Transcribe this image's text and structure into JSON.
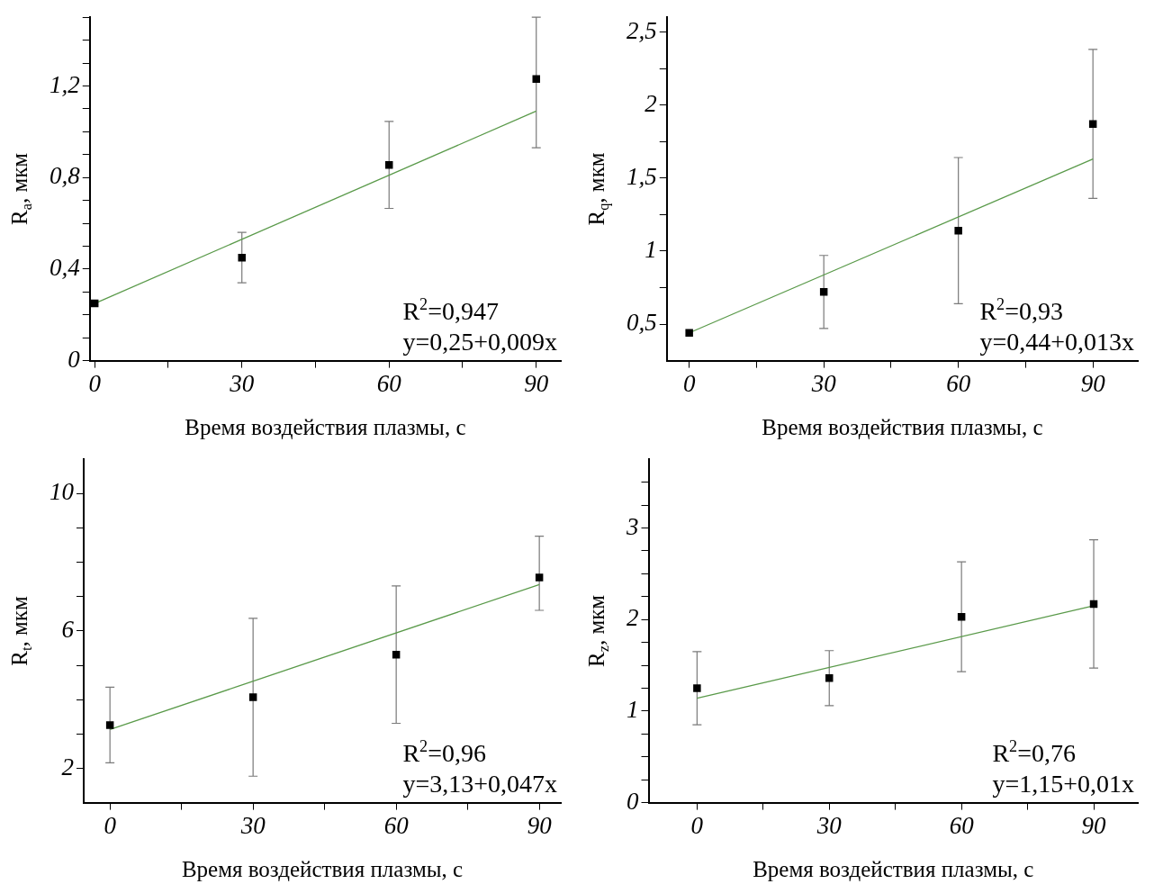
{
  "chart_data": [
    {
      "type": "scatter",
      "xlabel": "Время воздействия плазмы, с",
      "ylabel": "R$_{a}$, мкм",
      "grid": false,
      "legend": false,
      "xlim": [
        -1,
        95
      ],
      "xticks": [
        0,
        {
          "value": 15,
          "label": null
        },
        30,
        {
          "value": 45,
          "label": null
        },
        60,
        {
          "value": 75,
          "label": null
        },
        90
      ],
      "ylim": [
        0,
        1.5
      ],
      "yticks": [
        {
          "value": 0,
          "label": "0"
        },
        {
          "value": 0.1,
          "label": null
        },
        {
          "value": 0.2,
          "label": null
        },
        {
          "value": 0.3,
          "label": null
        },
        {
          "value": 0.4,
          "label": "0,4"
        },
        {
          "value": 0.5,
          "label": null
        },
        {
          "value": 0.6,
          "label": null
        },
        {
          "value": 0.7,
          "label": null
        },
        {
          "value": 0.8,
          "label": "0,8"
        },
        {
          "value": 0.9,
          "label": null
        },
        {
          "value": 1,
          "label": null
        },
        {
          "value": 1.1,
          "label": null
        },
        {
          "value": 1.2,
          "label": "1,2"
        },
        {
          "value": 1.3,
          "label": null
        },
        {
          "value": 1.4,
          "label": null
        },
        {
          "value": 1.5,
          "label": null
        }
      ],
      "series": [
        {
          "marker": "square",
          "color": "#000000",
          "x": [
            0,
            30,
            60,
            90
          ],
          "values": [
            0.25,
            0.45,
            0.855,
            1.23
          ],
          "errors": [
            null,
            0.11,
            0.19,
            [
              0.93,
              1.5
            ]
          ]
        },
        {
          "type": "line",
          "marker": "none",
          "color": "#5a9a4a",
          "x": [
            0,
            90
          ],
          "values": [
            0.25,
            1.09
          ]
        }
      ],
      "annotations": [
        "R$^{2}$=0,947",
        "y=0,25+0,009x"
      ]
    },
    {
      "type": "scatter",
      "xlabel": "Время воздействия плазмы, с",
      "ylabel": "R$_{q}$, мкм",
      "grid": false,
      "legend": false,
      "xlim": [
        -5,
        100
      ],
      "xticks": [
        0,
        {
          "value": 15,
          "label": null
        },
        30,
        {
          "value": 45,
          "label": null
        },
        60,
        {
          "value": 75,
          "label": null
        },
        90
      ],
      "ylim": [
        0.25,
        2.6
      ],
      "yticks": [
        {
          "value": 0.5,
          "label": "0,5"
        },
        {
          "value": 0.75,
          "label": null
        },
        {
          "value": 1,
          "label": "1"
        },
        {
          "value": 1.25,
          "label": null
        },
        {
          "value": 1.5,
          "label": "1,5"
        },
        {
          "value": 1.75,
          "label": null
        },
        {
          "value": 2,
          "label": "2"
        },
        {
          "value": 2.25,
          "label": null
        },
        {
          "value": 2.5,
          "label": "2,5"
        }
      ],
      "series": [
        {
          "marker": "square",
          "color": "#000000",
          "x": [
            0,
            30,
            60,
            90
          ],
          "values": [
            0.44,
            0.72,
            1.14,
            1.87
          ],
          "errors": [
            null,
            0.25,
            0.5,
            0.51
          ]
        },
        {
          "type": "line",
          "marker": "none",
          "color": "#5a9a4a",
          "x": [
            0,
            90
          ],
          "values": [
            0.44,
            1.63
          ]
        }
      ],
      "annotations": [
        "R$^{2}$=0,93",
        "y=0,44+0,013x"
      ]
    },
    {
      "type": "scatter",
      "xlabel": "Время воздействия плазмы, с",
      "ylabel": "R$_{t}$, мкм",
      "grid": false,
      "legend": false,
      "xlim": [
        -5.5,
        94.5
      ],
      "xticks": [
        0,
        {
          "value": 15,
          "label": null
        },
        30,
        {
          "value": 45,
          "label": null
        },
        60,
        {
          "value": 75,
          "label": null
        },
        90
      ],
      "ylim": [
        1,
        11
      ],
      "yticks": [
        {
          "value": 2,
          "label": "2"
        },
        {
          "value": 3,
          "label": null
        },
        {
          "value": 4,
          "label": null
        },
        {
          "value": 5,
          "label": null
        },
        {
          "value": 6,
          "label": "6"
        },
        {
          "value": 7,
          "label": null
        },
        {
          "value": 8,
          "label": null
        },
        {
          "value": 9,
          "label": null
        },
        {
          "value": 10,
          "label": "10"
        }
      ],
      "series": [
        {
          "marker": "square",
          "color": "#000000",
          "x": [
            0,
            30,
            60,
            90
          ],
          "values": [
            3.26,
            4.07,
            5.31,
            7.56
          ],
          "errors": [
            1.1,
            2.3,
            2,
            [
              6.6,
              8.76
            ]
          ]
        },
        {
          "type": "line",
          "marker": "none",
          "color": "#5a9a4a",
          "x": [
            0,
            90
          ],
          "values": [
            3.13,
            7.35
          ]
        }
      ],
      "annotations": [
        "R$^{2}$=0,96",
        "y=3,13+0,047x"
      ]
    },
    {
      "type": "scatter",
      "xlabel": "Время воздействия плазмы, с",
      "ylabel": "R$_{z}$, мкм",
      "grid": false,
      "legend": false,
      "xlim": [
        -11,
        100
      ],
      "xticks": [
        0,
        {
          "value": 15,
          "label": null
        },
        30,
        {
          "value": 45,
          "label": null
        },
        60,
        {
          "value": 75,
          "label": null
        },
        90
      ],
      "ylim": [
        0,
        3.75
      ],
      "yticks": [
        0,
        {
          "value": 0.25,
          "label": null
        },
        {
          "value": 0.5,
          "label": null
        },
        {
          "value": 0.75,
          "label": null
        },
        1,
        {
          "value": 1.25,
          "label": null
        },
        {
          "value": 1.5,
          "label": null
        },
        {
          "value": 1.75,
          "label": null
        },
        2,
        {
          "value": 2.25,
          "label": null
        },
        {
          "value": 2.5,
          "label": null
        },
        {
          "value": 2.75,
          "label": null
        },
        3,
        {
          "value": 3.25,
          "label": null
        },
        {
          "value": 3.5,
          "label": null
        }
      ],
      "series": [
        {
          "marker": "square",
          "color": "#000000",
          "x": [
            0,
            30,
            60,
            90
          ],
          "values": [
            1.25,
            1.36,
            2.03,
            2.17
          ],
          "errors": [
            0.4,
            0.3,
            0.6,
            0.7
          ]
        },
        {
          "type": "line",
          "marker": "none",
          "color": "#5a9a4a",
          "x": [
            0,
            90
          ],
          "values": [
            1.14,
            2.15
          ]
        }
      ],
      "annotations": [
        "R$^{2}$=0,76",
        "y=1,15+0,01x"
      ]
    }
  ]
}
